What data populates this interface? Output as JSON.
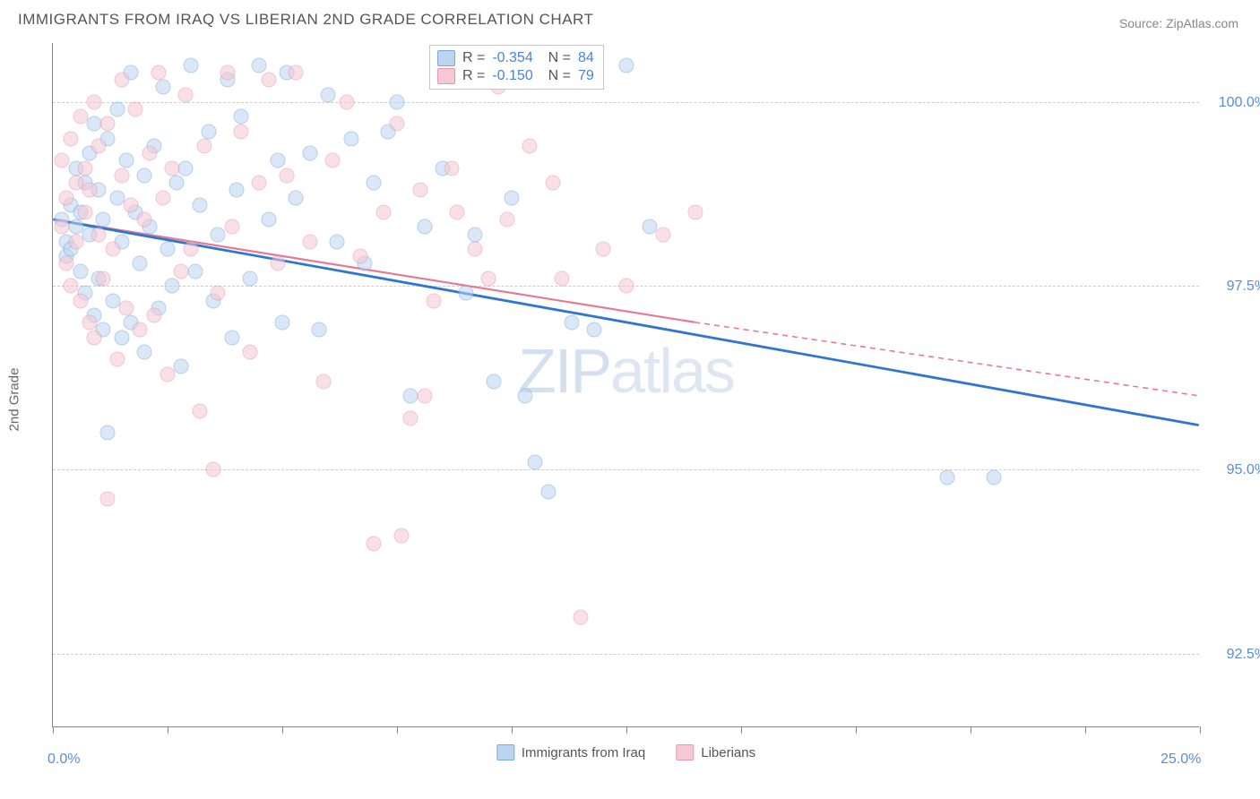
{
  "title": "IMMIGRANTS FROM IRAQ VS LIBERIAN 2ND GRADE CORRELATION CHART",
  "source": "Source: ZipAtlas.com",
  "ylabel": "2nd Grade",
  "watermark_bold": "ZIP",
  "watermark_thin": "atlas",
  "chart": {
    "type": "scatter",
    "xlim": [
      0,
      25
    ],
    "ylim": [
      91.5,
      100.8
    ],
    "yticks": [
      {
        "v": 92.5,
        "label": "92.5%"
      },
      {
        "v": 95.0,
        "label": "95.0%"
      },
      {
        "v": 97.5,
        "label": "97.5%"
      },
      {
        "v": 100.0,
        "label": "100.0%"
      }
    ],
    "xticks_minor": [
      0,
      2.5,
      5,
      7.5,
      10,
      12.5,
      15,
      17.5,
      20,
      22.5,
      25
    ],
    "xticks_labeled": [
      {
        "v": 0,
        "label": "0.0%"
      },
      {
        "v": 25,
        "label": "25.0%"
      }
    ],
    "background_color": "#ffffff",
    "grid_color": "#cccccc",
    "axis_color": "#888888",
    "series": [
      {
        "name": "Immigrants from Iraq",
        "color_fill": "#bdd4ef",
        "color_stroke": "#7aa8dd",
        "line_color": "#2f75d6",
        "R": "-0.354",
        "N": "84",
        "trend": {
          "x1": 0,
          "y1": 98.4,
          "x2": 25,
          "y2": 95.6
        },
        "points": [
          [
            0.2,
            98.4
          ],
          [
            0.3,
            98.1
          ],
          [
            0.3,
            97.9
          ],
          [
            0.4,
            98.6
          ],
          [
            0.4,
            98.0
          ],
          [
            0.5,
            98.3
          ],
          [
            0.5,
            99.1
          ],
          [
            0.6,
            97.7
          ],
          [
            0.6,
            98.5
          ],
          [
            0.7,
            98.9
          ],
          [
            0.7,
            97.4
          ],
          [
            0.8,
            98.2
          ],
          [
            0.8,
            99.3
          ],
          [
            0.9,
            99.7
          ],
          [
            0.9,
            97.1
          ],
          [
            1.0,
            98.8
          ],
          [
            1.0,
            97.6
          ],
          [
            1.1,
            96.9
          ],
          [
            1.1,
            98.4
          ],
          [
            1.2,
            99.5
          ],
          [
            1.2,
            95.5
          ],
          [
            1.3,
            97.3
          ],
          [
            1.4,
            98.7
          ],
          [
            1.4,
            99.9
          ],
          [
            1.5,
            96.8
          ],
          [
            1.5,
            98.1
          ],
          [
            1.6,
            99.2
          ],
          [
            1.7,
            97.0
          ],
          [
            1.7,
            100.4
          ],
          [
            1.8,
            98.5
          ],
          [
            1.9,
            97.8
          ],
          [
            2.0,
            99.0
          ],
          [
            2.0,
            96.6
          ],
          [
            2.1,
            98.3
          ],
          [
            2.2,
            99.4
          ],
          [
            2.3,
            97.2
          ],
          [
            2.4,
            100.2
          ],
          [
            2.5,
            98.0
          ],
          [
            2.6,
            97.5
          ],
          [
            2.7,
            98.9
          ],
          [
            2.8,
            96.4
          ],
          [
            2.9,
            99.1
          ],
          [
            3.0,
            100.5
          ],
          [
            3.1,
            97.7
          ],
          [
            3.2,
            98.6
          ],
          [
            3.4,
            99.6
          ],
          [
            3.5,
            97.3
          ],
          [
            3.6,
            98.2
          ],
          [
            3.8,
            100.3
          ],
          [
            3.9,
            96.8
          ],
          [
            4.0,
            98.8
          ],
          [
            4.1,
            99.8
          ],
          [
            4.3,
            97.6
          ],
          [
            4.5,
            100.5
          ],
          [
            4.7,
            98.4
          ],
          [
            4.9,
            99.2
          ],
          [
            5.0,
            97.0
          ],
          [
            5.1,
            100.4
          ],
          [
            5.3,
            98.7
          ],
          [
            5.6,
            99.3
          ],
          [
            5.8,
            96.9
          ],
          [
            6.0,
            100.1
          ],
          [
            6.2,
            98.1
          ],
          [
            6.5,
            99.5
          ],
          [
            6.8,
            97.8
          ],
          [
            7.0,
            98.9
          ],
          [
            7.3,
            99.6
          ],
          [
            7.5,
            100.0
          ],
          [
            7.8,
            96.0
          ],
          [
            8.1,
            98.3
          ],
          [
            8.5,
            99.1
          ],
          [
            9.0,
            97.4
          ],
          [
            9.2,
            98.2
          ],
          [
            9.6,
            96.2
          ],
          [
            10.0,
            98.7
          ],
          [
            10.3,
            96.0
          ],
          [
            10.5,
            95.1
          ],
          [
            10.8,
            94.7
          ],
          [
            11.3,
            97.0
          ],
          [
            11.8,
            96.9
          ],
          [
            12.5,
            100.5
          ],
          [
            13.0,
            98.3
          ],
          [
            19.5,
            94.9
          ],
          [
            20.5,
            94.9
          ]
        ]
      },
      {
        "name": "Liberians",
        "color_fill": "#f5c8d4",
        "color_stroke": "#e897ae",
        "line_color": "#e77994",
        "R": "-0.150",
        "N": "79",
        "trend_solid": {
          "x1": 0,
          "y1": 98.4,
          "x2": 14,
          "y2": 97.0
        },
        "trend_dash": {
          "x1": 14,
          "y1": 97.0,
          "x2": 25,
          "y2": 96.0
        },
        "points": [
          [
            0.2,
            99.2
          ],
          [
            0.2,
            98.3
          ],
          [
            0.3,
            97.8
          ],
          [
            0.3,
            98.7
          ],
          [
            0.4,
            99.5
          ],
          [
            0.4,
            97.5
          ],
          [
            0.5,
            98.1
          ],
          [
            0.5,
            98.9
          ],
          [
            0.6,
            99.8
          ],
          [
            0.6,
            97.3
          ],
          [
            0.7,
            98.5
          ],
          [
            0.7,
            99.1
          ],
          [
            0.8,
            97.0
          ],
          [
            0.8,
            98.8
          ],
          [
            0.9,
            100.0
          ],
          [
            0.9,
            96.8
          ],
          [
            1.0,
            98.2
          ],
          [
            1.0,
            99.4
          ],
          [
            1.1,
            97.6
          ],
          [
            1.2,
            99.7
          ],
          [
            1.2,
            94.6
          ],
          [
            1.3,
            98.0
          ],
          [
            1.4,
            96.5
          ],
          [
            1.5,
            99.0
          ],
          [
            1.5,
            100.3
          ],
          [
            1.6,
            97.2
          ],
          [
            1.7,
            98.6
          ],
          [
            1.8,
            99.9
          ],
          [
            1.9,
            96.9
          ],
          [
            2.0,
            98.4
          ],
          [
            2.1,
            99.3
          ],
          [
            2.2,
            97.1
          ],
          [
            2.3,
            100.4
          ],
          [
            2.4,
            98.7
          ],
          [
            2.5,
            96.3
          ],
          [
            2.6,
            99.1
          ],
          [
            2.8,
            97.7
          ],
          [
            2.9,
            100.1
          ],
          [
            3.0,
            98.0
          ],
          [
            3.2,
            95.8
          ],
          [
            3.3,
            99.4
          ],
          [
            3.5,
            95.0
          ],
          [
            3.6,
            97.4
          ],
          [
            3.8,
            100.4
          ],
          [
            3.9,
            98.3
          ],
          [
            4.1,
            99.6
          ],
          [
            4.3,
            96.6
          ],
          [
            4.5,
            98.9
          ],
          [
            4.7,
            100.3
          ],
          [
            4.9,
            97.8
          ],
          [
            5.1,
            99.0
          ],
          [
            5.3,
            100.4
          ],
          [
            5.6,
            98.1
          ],
          [
            5.9,
            96.2
          ],
          [
            6.1,
            99.2
          ],
          [
            6.4,
            100.0
          ],
          [
            6.7,
            97.9
          ],
          [
            7.0,
            94.0
          ],
          [
            7.2,
            98.5
          ],
          [
            7.5,
            99.7
          ],
          [
            7.6,
            94.1
          ],
          [
            7.8,
            95.7
          ],
          [
            8.0,
            98.8
          ],
          [
            8.1,
            96.0
          ],
          [
            8.3,
            97.3
          ],
          [
            8.7,
            99.1
          ],
          [
            8.8,
            98.5
          ],
          [
            9.2,
            98.0
          ],
          [
            9.5,
            97.6
          ],
          [
            9.7,
            100.2
          ],
          [
            9.9,
            98.4
          ],
          [
            10.4,
            99.4
          ],
          [
            10.9,
            98.9
          ],
          [
            11.1,
            97.6
          ],
          [
            11.5,
            93.0
          ],
          [
            12.0,
            98.0
          ],
          [
            12.5,
            97.5
          ],
          [
            13.3,
            98.2
          ],
          [
            14.0,
            98.5
          ]
        ]
      }
    ]
  },
  "legend_bottom": [
    {
      "label": "Immigrants from Iraq",
      "fill": "#bdd4ef",
      "stroke": "#7aa8dd"
    },
    {
      "label": "Liberians",
      "fill": "#f5c8d4",
      "stroke": "#e897ae"
    }
  ]
}
